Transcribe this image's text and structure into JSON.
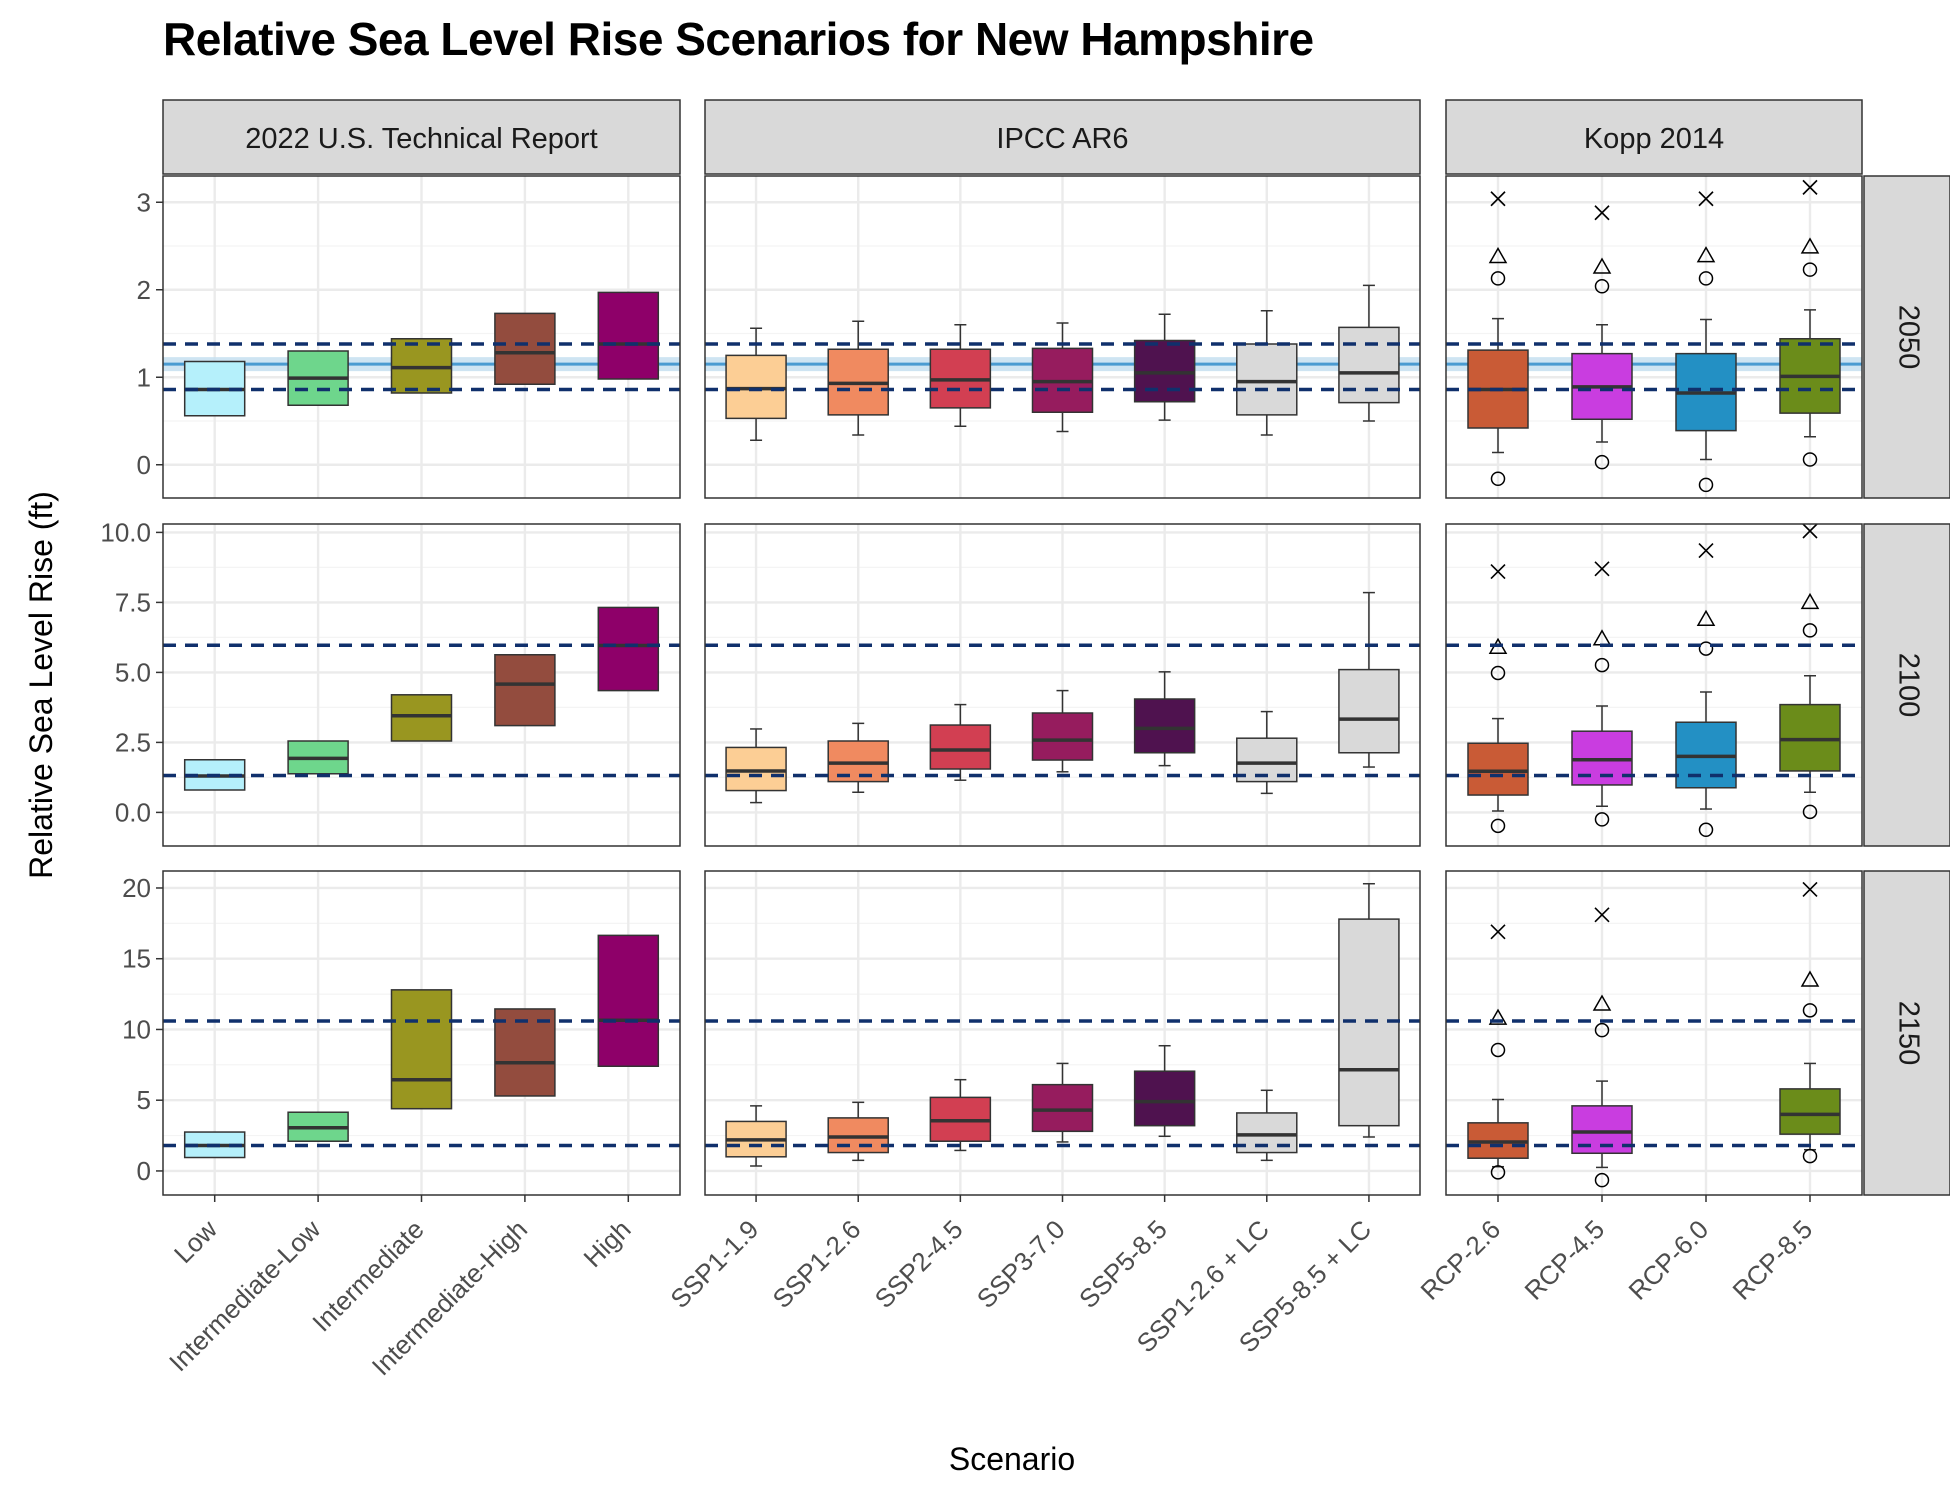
{
  "title": "Relative Sea Level Rise Scenarios for New Hampshire",
  "chart_data": {
    "type": "boxplot",
    "title": "Relative Sea Level Rise Scenarios for New Hampshire",
    "xlabel": "Scenario",
    "ylabel": "Relative Sea Level Rise (ft)",
    "facet_columns": [
      "2022 U.S. Technical Report",
      "IPCC AR6",
      "Kopp 2014"
    ],
    "facet_rows": [
      "2050",
      "2100",
      "2150"
    ],
    "categories": {
      "2022 U.S. Technical Report": [
        "Low",
        "Intermediate-Low",
        "Intermediate",
        "Intermediate-High",
        "High"
      ],
      "IPCC AR6": [
        "SSP1-1.9",
        "SSP1-2.6",
        "SSP2-4.5",
        "SSP3-7.0",
        "SSP5-8.5",
        "SSP1-2.6 + LC",
        "SSP5-8.5 + LC"
      ],
      "Kopp 2014": [
        "RCP-2.6",
        "RCP-4.5",
        "RCP-6.0",
        "RCP-8.5"
      ]
    },
    "colors": {
      "Low": "#b5f0fb",
      "Intermediate-Low": "#6ed68c",
      "Intermediate": "#999620",
      "Intermediate-High": "#934c3e",
      "High": "#8e0069",
      "SSP1-1.9": "#fcce95",
      "SSP1-2.6": "#f08a60",
      "SSP2-4.5": "#d23f52",
      "SSP3-7.0": "#961c5e",
      "SSP5-8.5": "#4f124f",
      "SSP1-2.6 + LC": "#d9d9d9",
      "SSP5-8.5 + LC": "#d9d9d9",
      "RCP-2.6": "#c95b36",
      "RCP-4.5": "#c93de0",
      "RCP-6.0": "#2390c4",
      "RCP-8.5": "#6b8c1a"
    },
    "rows": {
      "2050": {
        "ylim": [
          -0.38,
          3.3
        ],
        "yticks": [
          0,
          1,
          2,
          3
        ],
        "ytick_labels": [
          "0",
          "1",
          "2",
          "3"
        ],
        "reference_lines": [
          0.86,
          1.38
        ],
        "observed_band": {
          "center": 1.15,
          "low": 1.07,
          "high": 1.23
        },
        "series": {
          "2022 U.S. Technical Report": [
            {
              "q1": 0.56,
              "median": 0.86,
              "q3": 1.18
            },
            {
              "q1": 0.68,
              "median": 0.99,
              "q3": 1.3
            },
            {
              "q1": 0.82,
              "median": 1.11,
              "q3": 1.44
            },
            {
              "q1": 0.92,
              "median": 1.28,
              "q3": 1.73
            },
            {
              "q1": 0.98,
              "median": 1.38,
              "q3": 1.97
            }
          ],
          "IPCC AR6": [
            {
              "low": 0.28,
              "q1": 0.53,
              "median": 0.87,
              "q3": 1.25,
              "high": 1.56
            },
            {
              "low": 0.34,
              "q1": 0.57,
              "median": 0.93,
              "q3": 1.32,
              "high": 1.64
            },
            {
              "low": 0.44,
              "q1": 0.65,
              "median": 0.97,
              "q3": 1.32,
              "high": 1.6
            },
            {
              "low": 0.38,
              "q1": 0.6,
              "median": 0.95,
              "q3": 1.33,
              "high": 1.62
            },
            {
              "low": 0.51,
              "q1": 0.72,
              "median": 1.05,
              "q3": 1.42,
              "high": 1.72
            },
            {
              "low": 0.34,
              "q1": 0.57,
              "median": 0.95,
              "q3": 1.38,
              "high": 1.76
            },
            {
              "low": 0.5,
              "q1": 0.71,
              "median": 1.05,
              "q3": 1.57,
              "high": 2.05
            }
          ],
          "Kopp 2014": [
            {
              "low": 0.14,
              "q1": 0.42,
              "median": 0.86,
              "q3": 1.31,
              "high": 1.67,
              "circle_high": 2.13,
              "triangle": 2.38,
              "cross": 3.04,
              "circle_low": -0.16
            },
            {
              "low": 0.26,
              "q1": 0.52,
              "median": 0.89,
              "q3": 1.27,
              "high": 1.6,
              "circle_high": 2.04,
              "triangle": 2.26,
              "cross": 2.88,
              "circle_low": 0.03
            },
            {
              "low": 0.06,
              "q1": 0.39,
              "median": 0.82,
              "q3": 1.27,
              "high": 1.66,
              "circle_high": 2.13,
              "triangle": 2.39,
              "cross": 3.04,
              "circle_low": -0.23
            },
            {
              "low": 0.32,
              "q1": 0.59,
              "median": 1.01,
              "q3": 1.44,
              "high": 1.77,
              "circle_high": 2.23,
              "triangle": 2.49,
              "cross": 3.17,
              "circle_low": 0.06
            }
          ]
        }
      },
      "2100": {
        "ylim": [
          -1.2,
          10.3
        ],
        "yticks": [
          0,
          2.5,
          5,
          7.5,
          10
        ],
        "ytick_labels": [
          "0.0",
          "2.5",
          "5.0",
          "7.5",
          "10.0"
        ],
        "reference_lines": [
          1.32,
          5.97
        ],
        "series": {
          "2022 U.S. Technical Report": [
            {
              "q1": 0.8,
              "median": 1.3,
              "q3": 1.88
            },
            {
              "q1": 1.38,
              "median": 1.93,
              "q3": 2.55
            },
            {
              "q1": 2.55,
              "median": 3.45,
              "q3": 4.2
            },
            {
              "q1": 3.1,
              "median": 4.58,
              "q3": 5.63
            },
            {
              "q1": 4.35,
              "median": 5.96,
              "q3": 7.32
            }
          ],
          "IPCC AR6": [
            {
              "low": 0.35,
              "q1": 0.78,
              "median": 1.48,
              "q3": 2.32,
              "high": 2.98
            },
            {
              "low": 0.72,
              "q1": 1.1,
              "median": 1.76,
              "q3": 2.55,
              "high": 3.18
            },
            {
              "low": 1.15,
              "q1": 1.55,
              "median": 2.23,
              "q3": 3.12,
              "high": 3.85
            },
            {
              "low": 1.45,
              "q1": 1.87,
              "median": 2.58,
              "q3": 3.55,
              "high": 4.35
            },
            {
              "low": 1.67,
              "q1": 2.13,
              "median": 3.0,
              "q3": 4.05,
              "high": 5.02
            },
            {
              "low": 0.68,
              "q1": 1.1,
              "median": 1.76,
              "q3": 2.65,
              "high": 3.6
            },
            {
              "low": 1.62,
              "q1": 2.13,
              "median": 3.33,
              "q3": 5.1,
              "high": 7.85
            }
          ],
          "Kopp 2014": [
            {
              "low": 0.05,
              "q1": 0.62,
              "median": 1.47,
              "q3": 2.47,
              "high": 3.35,
              "circle_high": 4.98,
              "triangle": 5.9,
              "cross": 8.6,
              "circle_low": -0.48
            },
            {
              "low": 0.22,
              "q1": 0.98,
              "median": 1.88,
              "q3": 2.9,
              "high": 3.8,
              "circle_high": 5.26,
              "triangle": 6.2,
              "cross": 8.7,
              "circle_low": -0.25
            },
            {
              "low": 0.12,
              "q1": 0.88,
              "median": 2.0,
              "q3": 3.22,
              "high": 4.3,
              "circle_high": 5.85,
              "triangle": 6.9,
              "cross": 9.35,
              "circle_low": -0.62
            },
            {
              "low": 0.72,
              "q1": 1.48,
              "median": 2.6,
              "q3": 3.85,
              "high": 4.88,
              "circle_high": 6.5,
              "triangle": 7.5,
              "cross": 10.05,
              "circle_low": 0.02
            }
          ]
        }
      },
      "2150": {
        "ylim": [
          -1.7,
          21.2
        ],
        "yticks": [
          0,
          5,
          10,
          15,
          20
        ],
        "ytick_labels": [
          "0",
          "5",
          "10",
          "15",
          "20"
        ],
        "reference_lines": [
          1.8,
          10.6
        ],
        "series": {
          "2022 U.S. Technical Report": [
            {
              "q1": 0.95,
              "median": 1.8,
              "q3": 2.75
            },
            {
              "q1": 2.1,
              "median": 3.05,
              "q3": 4.15
            },
            {
              "q1": 4.4,
              "median": 6.45,
              "q3": 12.8
            },
            {
              "q1": 5.3,
              "median": 7.65,
              "q3": 11.45
            },
            {
              "q1": 7.4,
              "median": 10.65,
              "q3": 16.65
            }
          ],
          "IPCC AR6": [
            {
              "low": 0.35,
              "q1": 1.0,
              "median": 2.2,
              "q3": 3.5,
              "high": 4.6
            },
            {
              "low": 0.75,
              "q1": 1.3,
              "median": 2.4,
              "q3": 3.75,
              "high": 4.85
            },
            {
              "low": 1.45,
              "q1": 2.1,
              "median": 3.55,
              "q3": 5.2,
              "high": 6.45
            },
            {
              "low": 2.05,
              "q1": 2.8,
              "median": 4.3,
              "q3": 6.1,
              "high": 7.6
            },
            {
              "low": 2.45,
              "q1": 3.2,
              "median": 4.9,
              "q3": 7.05,
              "high": 8.85
            },
            {
              "low": 0.75,
              "q1": 1.3,
              "median": 2.55,
              "q3": 4.1,
              "high": 5.7
            },
            {
              "low": 2.4,
              "q1": 3.2,
              "median": 7.15,
              "q3": 17.8,
              "high": 20.3
            }
          ],
          "Kopp 2014": [
            {
              "low": 0.3,
              "q1": 0.9,
              "median": 2.05,
              "q3": 3.4,
              "high": 5.05,
              "circle_high": 8.55,
              "triangle": 10.8,
              "cross": 16.9,
              "circle_low": -0.1
            },
            {
              "low": 0.25,
              "q1": 1.25,
              "median": 2.75,
              "q3": 4.6,
              "high": 6.35,
              "circle_high": 9.95,
              "triangle": 11.8,
              "cross": 18.1,
              "circle_low": -0.65
            },
            null,
            {
              "low": 1.5,
              "q1": 2.6,
              "median": 4.0,
              "q3": 5.8,
              "high": 7.6,
              "circle_high": 11.35,
              "triangle": 13.5,
              "cross": 19.9,
              "circle_low": 1.05
            }
          ]
        }
      }
    }
  }
}
